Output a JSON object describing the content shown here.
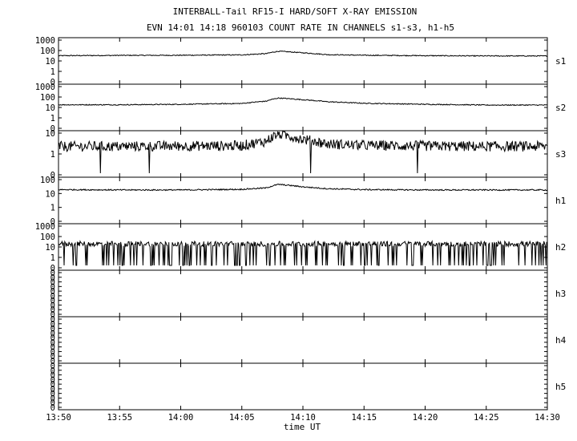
{
  "chart_data": {
    "type": "line",
    "title": "INTERBALL-Tail RF15-I HARD/SOFT X-RAY EMISSION",
    "subtitle": "EVN 14:01 14:18 960103  COUNT RATE IN CHANNELS s1-s3, h1-h5",
    "xlabel": "time UT",
    "x_range": [
      "13:50",
      "14:30"
    ],
    "x_tick_labels": [
      "13:50",
      "13:55",
      "14:00",
      "14:05",
      "14:10",
      "14:15",
      "14:20",
      "14:25",
      "14:30"
    ],
    "y_scale": "log",
    "panels": [
      {
        "name": "s1",
        "y_tick_labels": [
          "1000",
          "100",
          "10",
          "1",
          "0"
        ],
        "series_profile": {
          "x_minutes": [
            0,
            5,
            10,
            15,
            17,
            18,
            20,
            22,
            25,
            30,
            35,
            40
          ],
          "y": [
            32,
            34,
            35,
            38,
            50,
            85,
            60,
            40,
            35,
            32,
            30,
            30
          ]
        }
      },
      {
        "name": "s2",
        "y_tick_labels": [
          "1000",
          "100",
          "10",
          "1",
          "0"
        ],
        "series_profile": {
          "x_minutes": [
            0,
            5,
            10,
            15,
            17,
            18,
            20,
            22,
            25,
            30,
            35,
            40
          ],
          "y": [
            18,
            18,
            20,
            24,
            40,
            80,
            55,
            35,
            25,
            20,
            17,
            17
          ]
        }
      },
      {
        "name": "s3",
        "y_tick_labels": [
          "10",
          "1",
          "0"
        ],
        "series_profile": {
          "x_minutes": [
            0,
            5,
            10,
            15,
            17,
            18,
            20,
            22,
            25,
            30,
            35,
            40
          ],
          "y": [
            2.3,
            2.3,
            2.4,
            2.5,
            4,
            9,
            5,
            3,
            2.6,
            2.4,
            2.3,
            2.3
          ]
        }
      },
      {
        "name": "h1",
        "y_tick_labels": [
          "100",
          "10",
          "1",
          "0"
        ],
        "series_profile": {
          "x_minutes": [
            0,
            5,
            10,
            15,
            17,
            18,
            20,
            22,
            25,
            30,
            35,
            40
          ],
          "y": [
            19,
            18,
            18,
            20,
            25,
            45,
            30,
            22,
            19,
            18,
            18,
            18
          ]
        }
      },
      {
        "name": "h2",
        "y_tick_labels": [
          "1000",
          "100",
          "10",
          "1",
          "0"
        ],
        "series_profile": {
          "x_minutes": [
            0,
            40
          ],
          "y": [
            20,
            20
          ]
        }
      },
      {
        "name": "h3",
        "y_tick_labels": [
          "0",
          "0",
          "0",
          "0",
          "0",
          "0",
          "0",
          "0",
          "0",
          "0"
        ],
        "series_profile": {
          "x_minutes": [],
          "y": []
        }
      },
      {
        "name": "h4",
        "y_tick_labels": [
          "0",
          "0",
          "0",
          "0",
          "0",
          "0",
          "0",
          "0",
          "0",
          "0"
        ],
        "series_profile": {
          "x_minutes": [],
          "y": []
        }
      },
      {
        "name": "h5",
        "y_tick_labels": [
          "0",
          "0",
          "0",
          "0",
          "0",
          "0",
          "0",
          "0",
          "0",
          "0"
        ],
        "series_profile": {
          "x_minutes": [],
          "y": []
        }
      }
    ]
  }
}
